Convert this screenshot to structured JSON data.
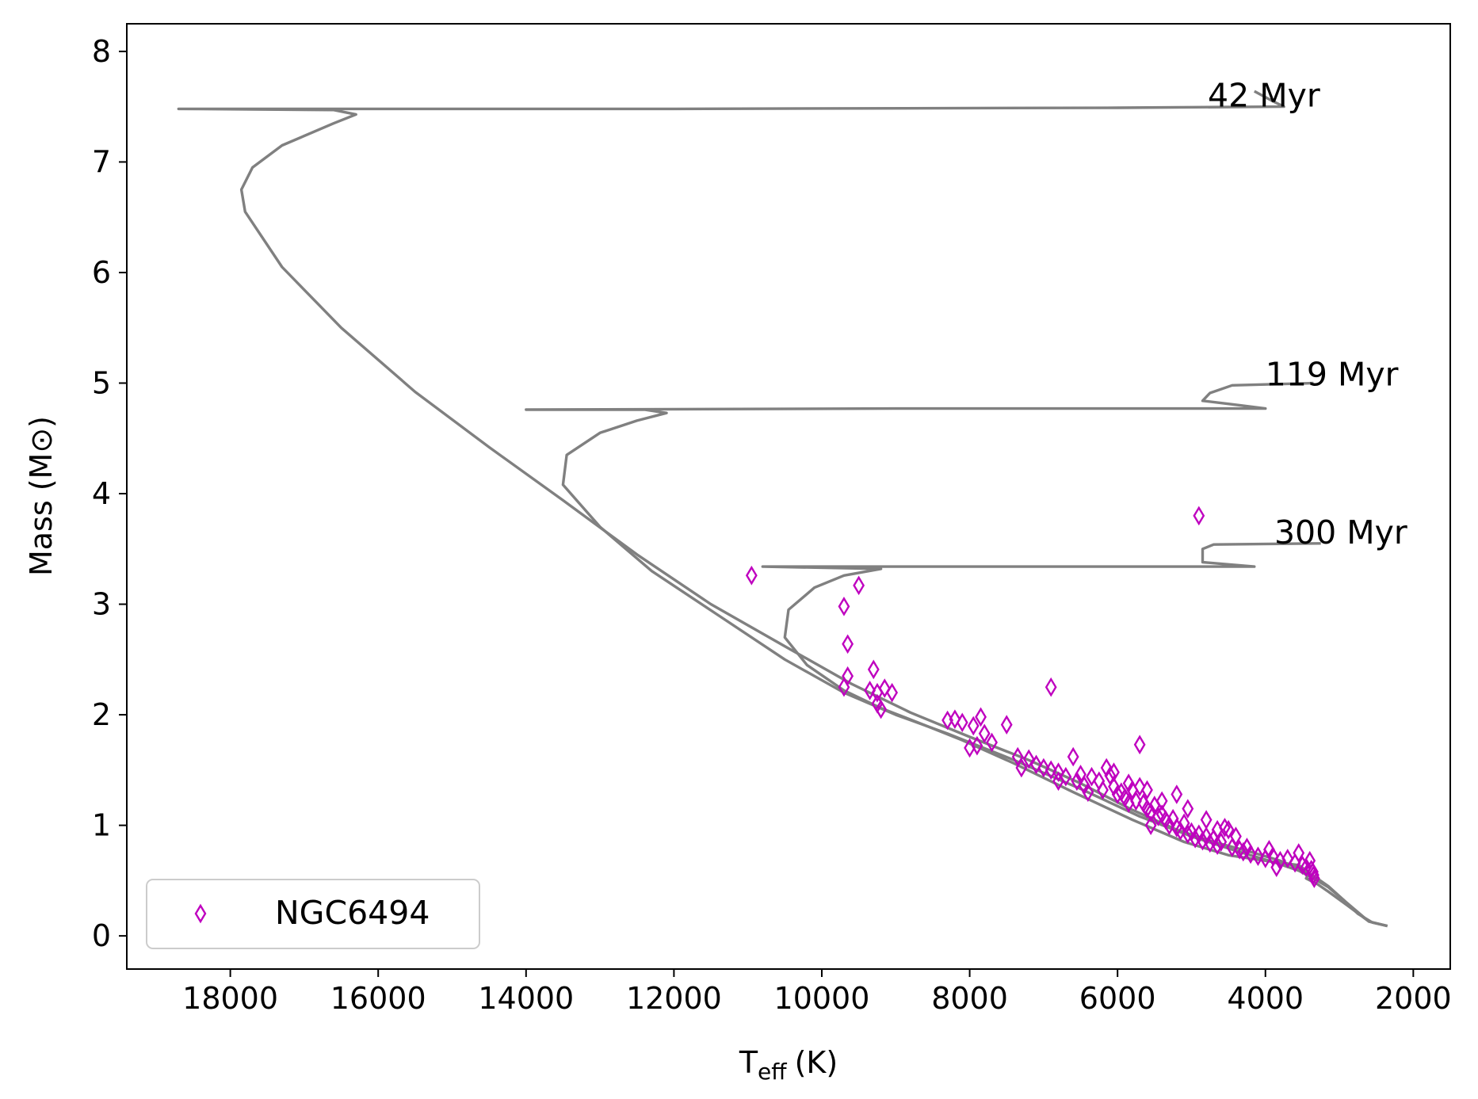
{
  "chart_data": {
    "type": "scatter",
    "title": "",
    "xlabel": "T",
    "xlabel_sub": "eff",
    "xlabel_unit": "(K)",
    "ylabel": "Mass (M⊙)",
    "xlim": [
      19400,
      1500
    ],
    "ylim": [
      -0.3,
      8.25
    ],
    "x_ticks": [
      18000,
      16000,
      14000,
      12000,
      10000,
      8000,
      6000,
      4000,
      2000
    ],
    "x_tick_labels": [
      "18000",
      "16000",
      "14000",
      "12000",
      "10000",
      "8000",
      "6000",
      "4000",
      "2000"
    ],
    "y_ticks": [
      0,
      1,
      2,
      3,
      4,
      5,
      6,
      7,
      8
    ],
    "y_tick_labels": [
      "0",
      "1",
      "2",
      "3",
      "4",
      "5",
      "6",
      "7",
      "8"
    ],
    "colors": {
      "isochrone": "#808080",
      "points": "#bf00bf",
      "axes": "#000000"
    },
    "legend": {
      "position": "lower-left",
      "label": "NGC6494",
      "marker": "thin_diamond"
    },
    "isochrones": [
      {
        "name": "42 Myr",
        "label": "42 Myr",
        "label_pos": [
          4780,
          7.6
        ],
        "points": [
          [
            2350,
            0.09
          ],
          [
            2550,
            0.12
          ],
          [
            2750,
            0.2
          ],
          [
            2950,
            0.33
          ],
          [
            3150,
            0.45
          ],
          [
            3300,
            0.52
          ],
          [
            3500,
            0.6
          ],
          [
            3800,
            0.68
          ],
          [
            4200,
            0.76
          ],
          [
            4700,
            0.85
          ],
          [
            5200,
            0.96
          ],
          [
            5800,
            1.14
          ],
          [
            6500,
            1.38
          ],
          [
            7200,
            1.59
          ],
          [
            8000,
            1.8
          ],
          [
            8800,
            2.02
          ],
          [
            9600,
            2.28
          ],
          [
            10500,
            2.62
          ],
          [
            11500,
            3.0
          ],
          [
            12500,
            3.45
          ],
          [
            13500,
            3.94
          ],
          [
            14500,
            4.42
          ],
          [
            15500,
            4.92
          ],
          [
            16500,
            5.5
          ],
          [
            17300,
            6.05
          ],
          [
            17800,
            6.55
          ],
          [
            17850,
            6.75
          ],
          [
            17700,
            6.95
          ],
          [
            17300,
            7.15
          ],
          [
            16600,
            7.35
          ],
          [
            16300,
            7.43
          ],
          [
            16600,
            7.47
          ],
          [
            18700,
            7.48
          ],
          [
            12000,
            7.48
          ],
          [
            6000,
            7.49
          ],
          [
            3750,
            7.5
          ],
          [
            3900,
            7.55
          ],
          [
            4150,
            7.64
          ]
        ]
      },
      {
        "name": "119 Myr",
        "label": "119 Myr",
        "label_pos": [
          4000,
          5.08
        ],
        "points": [
          [
            2350,
            0.09
          ],
          [
            2600,
            0.13
          ],
          [
            2900,
            0.3
          ],
          [
            3150,
            0.44
          ],
          [
            3350,
            0.52
          ],
          [
            3550,
            0.59
          ],
          [
            3900,
            0.67
          ],
          [
            4400,
            0.77
          ],
          [
            5000,
            0.9
          ],
          [
            5700,
            1.08
          ],
          [
            6500,
            1.33
          ],
          [
            7400,
            1.59
          ],
          [
            8300,
            1.83
          ],
          [
            9000,
            2.0
          ],
          [
            9700,
            2.2
          ],
          [
            10500,
            2.5
          ],
          [
            11400,
            2.9
          ],
          [
            12300,
            3.3
          ],
          [
            13000,
            3.7
          ],
          [
            13500,
            4.08
          ],
          [
            13450,
            4.35
          ],
          [
            13000,
            4.55
          ],
          [
            12500,
            4.66
          ],
          [
            12100,
            4.73
          ],
          [
            12400,
            4.76
          ],
          [
            14000,
            4.76
          ],
          [
            9000,
            4.77
          ],
          [
            4000,
            4.77
          ],
          [
            4350,
            4.8
          ],
          [
            4850,
            4.84
          ],
          [
            4750,
            4.91
          ],
          [
            4450,
            4.98
          ],
          [
            3350,
            5.0
          ]
        ]
      },
      {
        "name": "300 Myr",
        "label": "300 Myr",
        "label_pos": [
          3880,
          3.65
        ],
        "points": [
          [
            2350,
            0.09
          ],
          [
            2600,
            0.13
          ],
          [
            2900,
            0.28
          ],
          [
            3150,
            0.4
          ],
          [
            3300,
            0.47
          ],
          [
            3450,
            0.52
          ],
          [
            3400,
            0.57
          ],
          [
            3550,
            0.64
          ],
          [
            3900,
            0.67
          ],
          [
            4500,
            0.73
          ],
          [
            5100,
            0.85
          ],
          [
            5800,
            1.05
          ],
          [
            6600,
            1.3
          ],
          [
            7400,
            1.56
          ],
          [
            8100,
            1.77
          ],
          [
            8700,
            1.93
          ],
          [
            9200,
            2.06
          ],
          [
            9700,
            2.22
          ],
          [
            10200,
            2.45
          ],
          [
            10500,
            2.7
          ],
          [
            10450,
            2.95
          ],
          [
            10100,
            3.15
          ],
          [
            9700,
            3.26
          ],
          [
            9200,
            3.32
          ],
          [
            10800,
            3.34
          ],
          [
            8000,
            3.34
          ],
          [
            5000,
            3.34
          ],
          [
            4150,
            3.34
          ],
          [
            4500,
            3.36
          ],
          [
            4850,
            3.38
          ],
          [
            4850,
            3.5
          ],
          [
            4700,
            3.54
          ],
          [
            3250,
            3.55
          ]
        ]
      }
    ],
    "series": [
      {
        "name": "NGC6494",
        "marker": "thin_diamond",
        "points": [
          [
            4900,
            3.8
          ],
          [
            10950,
            3.26
          ],
          [
            9700,
            2.98
          ],
          [
            9500,
            3.17
          ],
          [
            9650,
            2.64
          ],
          [
            9650,
            2.35
          ],
          [
            9700,
            2.25
          ],
          [
            9300,
            2.41
          ],
          [
            9350,
            2.22
          ],
          [
            9250,
            2.2
          ],
          [
            9150,
            2.24
          ],
          [
            9050,
            2.2
          ],
          [
            9250,
            2.1
          ],
          [
            9200,
            2.05
          ],
          [
            6900,
            2.25
          ],
          [
            5700,
            1.73
          ],
          [
            8300,
            1.95
          ],
          [
            8200,
            1.96
          ],
          [
            8100,
            1.93
          ],
          [
            7950,
            1.9
          ],
          [
            7850,
            1.98
          ],
          [
            7800,
            1.83
          ],
          [
            7700,
            1.75
          ],
          [
            7500,
            1.91
          ],
          [
            7900,
            1.72
          ],
          [
            8000,
            1.7
          ],
          [
            7350,
            1.62
          ],
          [
            7200,
            1.6
          ],
          [
            7100,
            1.55
          ],
          [
            7000,
            1.52
          ],
          [
            6900,
            1.5
          ],
          [
            6800,
            1.48
          ],
          [
            6700,
            1.44
          ],
          [
            6600,
            1.62
          ],
          [
            6550,
            1.4
          ],
          [
            6450,
            1.36
          ],
          [
            6350,
            1.44
          ],
          [
            6250,
            1.4
          ],
          [
            6200,
            1.32
          ],
          [
            6100,
            1.45
          ],
          [
            6050,
            1.35
          ],
          [
            6000,
            1.28
          ],
          [
            5950,
            1.3
          ],
          [
            5900,
            1.25
          ],
          [
            5850,
            1.38
          ],
          [
            5800,
            1.32
          ],
          [
            5750,
            1.22
          ],
          [
            5700,
            1.35
          ],
          [
            5650,
            1.2
          ],
          [
            5600,
            1.15
          ],
          [
            5550,
            1.12
          ],
          [
            5500,
            1.18
          ],
          [
            5450,
            1.08
          ],
          [
            5400,
            1.1
          ],
          [
            5350,
            1.05
          ],
          [
            5300,
            1.0
          ],
          [
            5250,
            1.06
          ],
          [
            5200,
            0.98
          ],
          [
            5150,
            0.95
          ],
          [
            5100,
            1.02
          ],
          [
            5050,
            0.92
          ],
          [
            5000,
            0.94
          ],
          [
            4950,
            0.88
          ],
          [
            4900,
            0.92
          ],
          [
            4850,
            0.86
          ],
          [
            4800,
            0.9
          ],
          [
            4750,
            0.84
          ],
          [
            4700,
            0.88
          ],
          [
            4650,
            0.82
          ],
          [
            4600,
            0.85
          ],
          [
            4550,
            0.98
          ],
          [
            4500,
            0.96
          ],
          [
            4450,
            0.8
          ],
          [
            4400,
            0.9
          ],
          [
            4350,
            0.78
          ],
          [
            4300,
            0.76
          ],
          [
            4200,
            0.74
          ],
          [
            4100,
            0.72
          ],
          [
            4000,
            0.7
          ],
          [
            3950,
            0.78
          ],
          [
            3900,
            0.72
          ],
          [
            3800,
            0.68
          ],
          [
            3700,
            0.7
          ],
          [
            3600,
            0.66
          ],
          [
            3550,
            0.75
          ],
          [
            3500,
            0.64
          ],
          [
            3450,
            0.62
          ],
          [
            3400,
            0.68
          ],
          [
            3380,
            0.6
          ],
          [
            3360,
            0.58
          ],
          [
            3350,
            0.55
          ],
          [
            3340,
            0.52
          ],
          [
            5200,
            1.28
          ],
          [
            5400,
            1.22
          ],
          [
            5600,
            1.32
          ],
          [
            6050,
            1.48
          ],
          [
            6400,
            1.3
          ],
          [
            6800,
            1.4
          ],
          [
            7300,
            1.52
          ],
          [
            4800,
            1.05
          ],
          [
            5050,
            1.15
          ],
          [
            5850,
            1.2
          ],
          [
            6150,
            1.52
          ],
          [
            6500,
            1.46
          ],
          [
            5550,
            1.0
          ],
          [
            4650,
            0.96
          ],
          [
            4250,
            0.8
          ],
          [
            3850,
            0.62
          ]
        ]
      }
    ]
  }
}
